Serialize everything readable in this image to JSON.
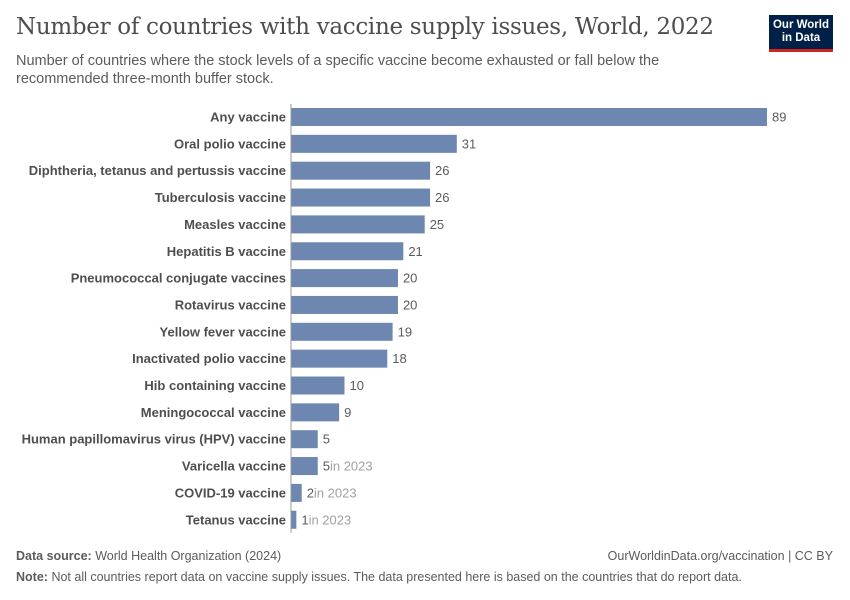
{
  "header": {
    "title": "Number of countries with vaccine supply issues, World, 2022",
    "subtitle": "Number of countries where the stock levels of a specific vaccine become exhausted or fall below the recommended three-month buffer stock.",
    "logo": "Our World in Data"
  },
  "footer": {
    "source_label": "Data source:",
    "source": "World Health Organization (2024)",
    "url": "OurWorldinData.org/vaccination | CC BY",
    "note_label": "Note:",
    "note": "Not all countries report data on vaccine supply issues. The data presented here is based on the countries that do report data."
  },
  "chart_data": {
    "type": "bar",
    "orientation": "horizontal",
    "title": "Number of countries with vaccine supply issues, World, 2022",
    "categories": [
      "Any vaccine",
      "Oral polio vaccine",
      "Diphtheria, tetanus and pertussis vaccine",
      "Tuberculosis vaccine",
      "Measles vaccine",
      "Hepatitis B vaccine",
      "Pneumococcal conjugate vaccines",
      "Rotavirus vaccine",
      "Yellow fever vaccine",
      "Inactivated polio vaccine",
      "Hib containing vaccine",
      "Meningococcal vaccine",
      "Human papillomavirus virus (HPV) vaccine",
      "Varicella vaccine",
      "COVID-19 vaccine",
      "Tetanus vaccine"
    ],
    "values": [
      89,
      31,
      26,
      26,
      25,
      21,
      20,
      20,
      19,
      18,
      10,
      9,
      5,
      5,
      2,
      1
    ],
    "annotations": [
      "",
      "",
      "",
      "",
      "",
      "",
      "",
      "",
      "",
      "",
      "",
      "",
      "",
      "in 2023",
      "in 2023",
      "in 2023"
    ],
    "xlim": [
      0,
      89
    ],
    "bar_color": "#6d87b0"
  }
}
